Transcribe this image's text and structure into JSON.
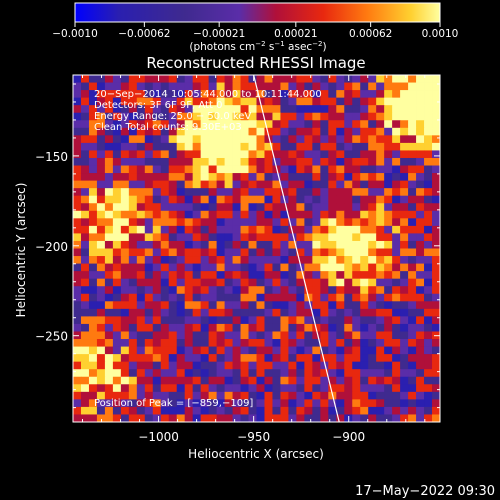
{
  "chart_data": {
    "type": "heatmap",
    "title": "Reconstructed RHESSI Image",
    "xlabel": "Heliocentric X (arcsec)",
    "ylabel": "Heliocentric Y (arcsec)",
    "xlim": [
      -1045,
      -852
    ],
    "ylim": [
      -298,
      -105
    ],
    "x_ticks": [
      -1000,
      -950,
      -900
    ],
    "x_tick_labels": [
      "−1000",
      "−950",
      "−900"
    ],
    "y_ticks": [
      -150,
      -200,
      -250
    ],
    "y_tick_labels": [
      "−150",
      "−200",
      "−250"
    ],
    "colorbar": {
      "range": [
        -0.001,
        0.001
      ],
      "ticks": [
        -0.001,
        -0.00062,
        -0.00021,
        0.00021,
        0.00062,
        0.001
      ],
      "tick_labels": [
        "−0.0010",
        "−0.00062",
        "−0.00021",
        "0.00021",
        "0.00062",
        "0.0010"
      ],
      "unit_label_parts": [
        "(photons cm",
        "−2",
        " s",
        "−1",
        " asec",
        "−2",
        ")"
      ]
    },
    "annotations": [
      "20−Sep−2014 10:05:44.000 to 10:11:44.000",
      "Detectors: 3F 6F 9F, Att 0",
      "Energy Range: 25.0 − 50.0 keV",
      "Clean    Total counts: 9.30E+03"
    ],
    "peak_text": "Position of Peak = [−859,−109]",
    "peak": [
      -859,
      -109
    ],
    "sources": [
      {
        "x": -965,
        "y": -140,
        "strength": 1.0
      },
      {
        "x": -860,
        "y": -120,
        "strength": 0.95
      },
      {
        "x": -898,
        "y": -200,
        "strength": 0.7
      },
      {
        "x": -1025,
        "y": -185,
        "strength": 0.55
      },
      {
        "x": -1035,
        "y": -270,
        "strength": 0.45
      }
    ],
    "limb_line": [
      [
        -950,
        -105
      ],
      [
        -905,
        -298
      ]
    ]
  },
  "colors": {
    "colormap": [
      "#0000ff",
      "#2a1fb0",
      "#3f2a8f",
      "#5a2da8",
      "#b0103a",
      "#e8280f",
      "#ff7a10",
      "#ffd030",
      "#ffffa0"
    ]
  },
  "footer": {
    "timestamp": "17−May−2022 09:30"
  }
}
